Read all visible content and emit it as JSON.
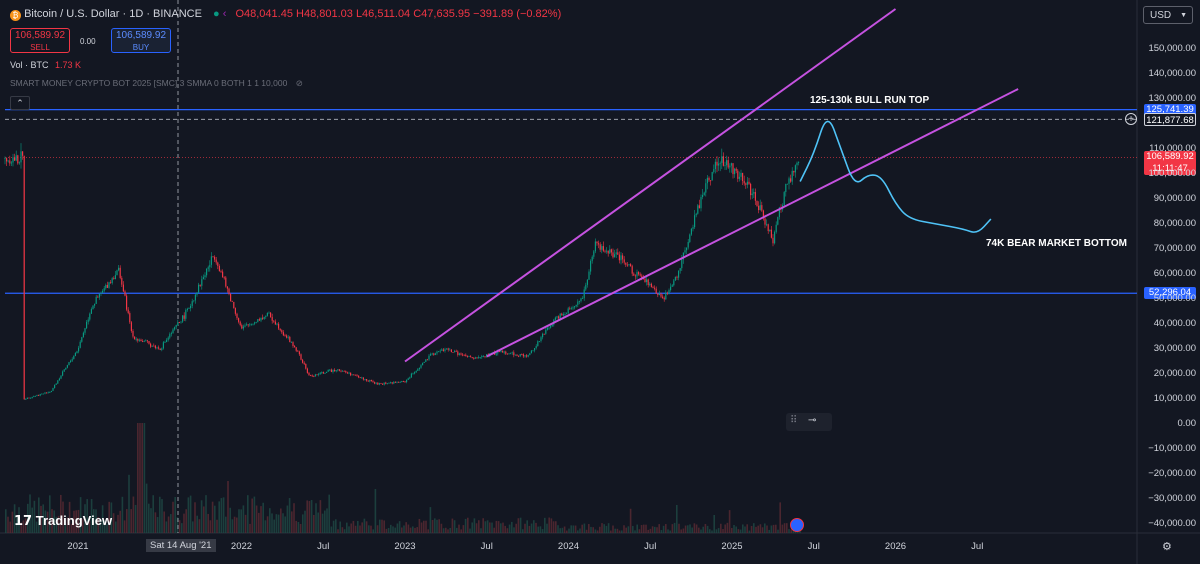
{
  "header": {
    "title": "Bitcoin / U.S. Dollar · 1D · BINANCE",
    "ohlc": "O48,041.45 H48,801.03 L46,511.04 C47,635.95 −391.89 (−0.82%)",
    "sell_price": "106,589.92",
    "sell_label": "SELL",
    "spread": "0.00",
    "buy_price": "106,589.92",
    "buy_label": "BUY",
    "volume_label": "Vol · BTC",
    "volume_value": "1.73 K",
    "indicator": "SMART MONEY CRYPTO BOT 2025 [SMC] 3 SMMA 0 BOTH 1 1 10,000",
    "currency": "USD",
    "logo_text": "TradingView"
  },
  "annotations": {
    "top": "125-130k BULL RUN TOP",
    "bottom": "74K BEAR MARKET BOTTOM"
  },
  "price_tags": {
    "upper_line": "125,741.39",
    "crosshair": "121,877.68",
    "current": "106,589.92",
    "countdown": "11:11:47",
    "lower_line": "52,296.04"
  },
  "crosshair_date": "Sat 14 Aug '21",
  "colors": {
    "bg": "#131722",
    "up": "#089981",
    "down": "#f23645",
    "horizontal_line": "#2962ff",
    "channel": "#c552e0",
    "projection": "#4fc3f7"
  },
  "chart_data": {
    "type": "line",
    "title": "Bitcoin / U.S. Dollar · 1D · BINANCE",
    "xlabel": "",
    "ylabel": "",
    "y_axis_ticks": [
      "150,000.00",
      "140,000.00",
      "130,000.00",
      "110,000.00",
      "100,000.00",
      "90,000.00",
      "80,000.00",
      "70,000.00",
      "60,000.00",
      "50,000.00",
      "40,000.00",
      "30,000.00",
      "20,000.00",
      "10,000.00",
      "0.00",
      "−10,000.00",
      "−20,000.00",
      "−30,000.00",
      "−40,000.00"
    ],
    "x_axis_ticks": [
      "2021",
      "2022",
      "Jul",
      "2023",
      "Jul",
      "2024",
      "Jul",
      "2025",
      "Jul",
      "2026",
      "Jul"
    ],
    "ylim": [
      -40000,
      150000
    ],
    "grid": false,
    "series": [
      {
        "kind": "price",
        "x": [
          "2020-09",
          "2020-11",
          "2021-01",
          "2021-02",
          "2021-04",
          "2021-05",
          "2021-07",
          "2021-09",
          "2021-11",
          "2022-01",
          "2022-03",
          "2022-05",
          "2022-06",
          "2022-08",
          "2022-11",
          "2023-01",
          "2023-03",
          "2023-04",
          "2023-06",
          "2023-08",
          "2023-10",
          "2023-12",
          "2024-02",
          "2024-03",
          "2024-05",
          "2024-08",
          "2024-09",
          "2024-11",
          "2024-12",
          "2025-02",
          "2025-04",
          "2025-05",
          "2025-06"
        ],
        "values": [
          10000,
          13000,
          30000,
          47000,
          62000,
          35000,
          30000,
          45000,
          68000,
          38000,
          44000,
          30000,
          19000,
          22000,
          16000,
          17000,
          28000,
          30000,
          26000,
          29000,
          27000,
          42000,
          50000,
          72000,
          65000,
          50000,
          60000,
          95000,
          106000,
          98000,
          74000,
          95000,
          106000
        ]
      },
      {
        "kind": "projection",
        "x": [
          "2025-06",
          "2025-07",
          "2025-08",
          "2025-09",
          "2025-10",
          "2025-11",
          "2025-12",
          "2026-01",
          "2026-02",
          "2026-04",
          "2026-06",
          "2026-07",
          "2026-08"
        ],
        "values": [
          97000,
          108000,
          125000,
          110000,
          95000,
          100000,
          99000,
          88000,
          82000,
          80000,
          78000,
          76000,
          82000
        ]
      }
    ],
    "horizontal_lines": [
      125741.39,
      121877.68,
      106589.92,
      52296.04
    ],
    "trendlines": [
      {
        "name": "upper channel",
        "from": {
          "x": "2023-01",
          "y": 25000
        },
        "to": {
          "x": "2026-01",
          "y": 166000
        }
      },
      {
        "name": "lower channel",
        "from": {
          "x": "2023-07",
          "y": 27000
        },
        "to": {
          "x": "2026-10",
          "y": 134000
        }
      }
    ]
  }
}
